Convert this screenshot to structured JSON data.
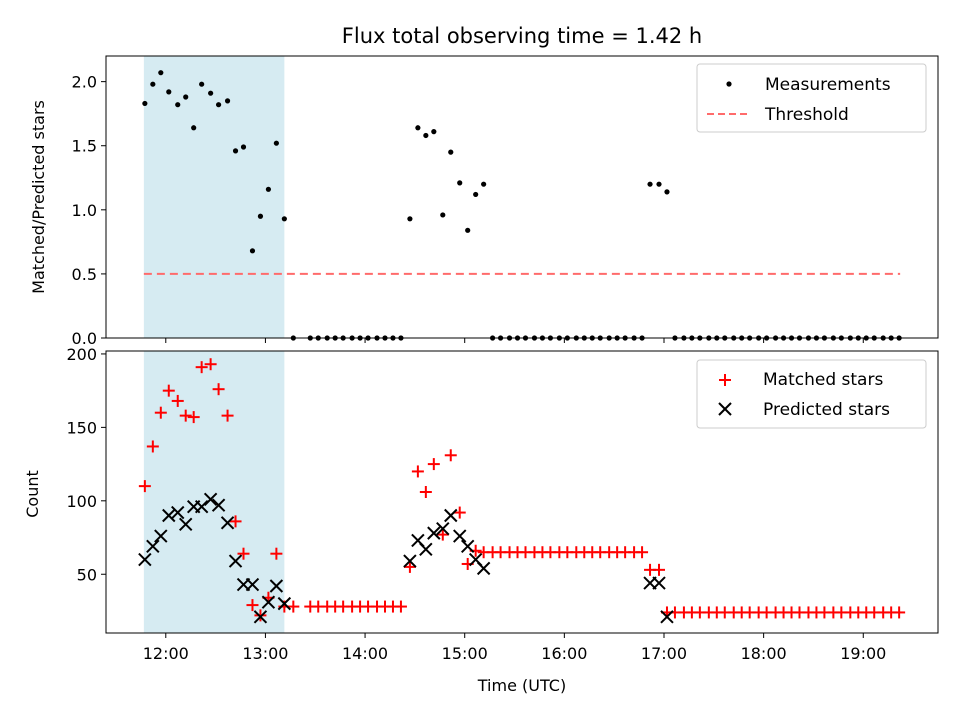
{
  "chart_data": [
    {
      "type": "scatter",
      "title": "Flux total observing time = 1.42 h",
      "ylabel": "Matched/Predicted stars",
      "xlabel": "",
      "xlim_hours": [
        11.4,
        19.75
      ],
      "ylim": [
        0,
        2.2
      ],
      "yticks": [
        0.0,
        0.5,
        1.0,
        1.5,
        2.0
      ],
      "ytick_labels": [
        "0.0",
        "0.5",
        "1.0",
        "1.5",
        "2.0"
      ],
      "shaded_interval_hours": [
        11.78,
        13.19
      ],
      "shade_color": "#add8e6",
      "threshold": {
        "value": 0.5,
        "from": 11.78,
        "to": 19.37,
        "color": "#ff6b6b"
      },
      "legend_position": "upper right",
      "legend": [
        {
          "label": "Measurements",
          "marker": "dot",
          "color": "#000000"
        },
        {
          "label": "Threshold",
          "marker": "dashed-line",
          "color": "#ff6b6b"
        }
      ],
      "series": [
        {
          "name": "Measurements",
          "x": [
            11.79,
            11.87,
            11.95,
            12.03,
            12.12,
            12.2,
            12.28,
            12.36,
            12.45,
            12.53,
            12.62,
            12.7,
            12.78,
            12.87,
            12.95,
            13.03,
            13.11,
            13.19,
            13.28,
            13.45,
            13.53,
            13.62,
            13.7,
            13.78,
            13.87,
            13.95,
            14.03,
            14.12,
            14.2,
            14.28,
            14.36,
            14.45,
            14.53,
            14.61,
            14.69,
            14.78,
            14.86,
            14.95,
            15.03,
            15.11,
            15.19,
            15.28,
            15.36,
            15.45,
            15.53,
            15.61,
            15.7,
            15.78,
            15.86,
            15.95,
            16.03,
            16.12,
            16.2,
            16.28,
            16.36,
            16.45,
            16.53,
            16.61,
            16.7,
            16.78,
            16.86,
            16.95,
            17.03,
            17.11,
            17.2,
            17.28,
            17.36,
            17.45,
            17.53,
            17.61,
            17.7,
            17.78,
            17.86,
            17.95,
            18.03,
            18.12,
            18.2,
            18.28,
            18.36,
            18.45,
            18.53,
            18.61,
            18.7,
            18.78,
            18.87,
            18.95,
            19.03,
            19.11,
            19.2,
            19.28,
            19.36
          ],
          "y": [
            1.83,
            1.98,
            2.07,
            1.92,
            1.82,
            1.88,
            1.64,
            1.98,
            1.91,
            1.82,
            1.85,
            1.46,
            1.49,
            0.68,
            0.95,
            1.16,
            1.52,
            0.93,
            0.0,
            0.0,
            0.0,
            0.0,
            0.0,
            0.0,
            0.0,
            0.0,
            0.0,
            0.0,
            0.0,
            0.0,
            0.0,
            0.93,
            1.64,
            1.58,
            1.61,
            0.96,
            1.45,
            1.21,
            0.84,
            1.12,
            1.2,
            0.0,
            0.0,
            0.0,
            0.0,
            0.0,
            0.0,
            0.0,
            0.0,
            0.0,
            0.0,
            0.0,
            0.0,
            0.0,
            0.0,
            0.0,
            0.0,
            0.0,
            0.0,
            0.0,
            1.2,
            1.2,
            1.14,
            0.0,
            0.0,
            0.0,
            0.0,
            0.0,
            0.0,
            0.0,
            0.0,
            0.0,
            0.0,
            0.0,
            0.0,
            0.0,
            0.0,
            0.0,
            0.0,
            0.0,
            0.0,
            0.0,
            0.0,
            0.0,
            0.0,
            0.0,
            0.0,
            0.0,
            0.0,
            0.0,
            0.0
          ]
        }
      ]
    },
    {
      "type": "scatter",
      "title": "",
      "ylabel": "Count",
      "xlabel": "Time (UTC)",
      "xlim_hours": [
        11.4,
        19.75
      ],
      "ylim": [
        10,
        202
      ],
      "yticks": [
        50,
        100,
        150,
        200
      ],
      "ytick_labels": [
        "50",
        "100",
        "150",
        "200"
      ],
      "xticks_hours": [
        12,
        13,
        14,
        15,
        16,
        17,
        18,
        19
      ],
      "xtick_labels": [
        "12:00",
        "13:00",
        "14:00",
        "15:00",
        "16:00",
        "17:00",
        "18:00",
        "19:00"
      ],
      "shaded_interval_hours": [
        11.78,
        13.19
      ],
      "shade_color": "#add8e6",
      "legend_position": "upper right",
      "legend": [
        {
          "label": "Matched stars",
          "marker": "plus",
          "color": "#ff0000"
        },
        {
          "label": "Predicted stars",
          "marker": "x",
          "color": "#000000"
        }
      ],
      "series": [
        {
          "name": "Matched stars",
          "x": [
            11.79,
            11.87,
            11.95,
            12.03,
            12.12,
            12.2,
            12.28,
            12.36,
            12.45,
            12.53,
            12.62,
            12.7,
            12.78,
            12.87,
            12.95,
            13.03,
            13.11,
            13.19,
            13.28,
            13.45,
            13.53,
            13.62,
            13.7,
            13.78,
            13.87,
            13.95,
            14.03,
            14.12,
            14.2,
            14.28,
            14.36,
            14.45,
            14.53,
            14.61,
            14.69,
            14.78,
            14.86,
            14.95,
            15.03,
            15.11,
            15.19,
            15.28,
            15.36,
            15.45,
            15.53,
            15.61,
            15.7,
            15.78,
            15.86,
            15.95,
            16.03,
            16.12,
            16.2,
            16.28,
            16.36,
            16.45,
            16.53,
            16.61,
            16.7,
            16.78,
            16.86,
            16.95,
            17.03,
            17.11,
            17.2,
            17.28,
            17.36,
            17.45,
            17.53,
            17.61,
            17.7,
            17.78,
            17.86,
            17.95,
            18.03,
            18.12,
            18.2,
            18.28,
            18.36,
            18.45,
            18.53,
            18.61,
            18.7,
            18.78,
            18.87,
            18.95,
            19.03,
            19.11,
            19.2,
            19.28,
            19.36
          ],
          "y": [
            110,
            137,
            160,
            175,
            168,
            158,
            157,
            191,
            193,
            176,
            158,
            86,
            64,
            29,
            22,
            34,
            64,
            28,
            28,
            28,
            28,
            28,
            28,
            28,
            28,
            28,
            28,
            28,
            28,
            28,
            28,
            55,
            120,
            106,
            125,
            77,
            131,
            92,
            57,
            66,
            65,
            65,
            65,
            65,
            65,
            65,
            65,
            65,
            65,
            65,
            65,
            65,
            65,
            65,
            65,
            65,
            65,
            65,
            65,
            65,
            53,
            53,
            24,
            24,
            24,
            24,
            24,
            24,
            24,
            24,
            24,
            24,
            24,
            24,
            24,
            24,
            24,
            24,
            24,
            24,
            24,
            24,
            24,
            24,
            24,
            24,
            24,
            24,
            24,
            24,
            24
          ]
        },
        {
          "name": "Predicted stars",
          "x": [
            11.79,
            11.87,
            11.95,
            12.03,
            12.12,
            12.2,
            12.28,
            12.36,
            12.45,
            12.53,
            12.62,
            12.7,
            12.78,
            12.87,
            12.95,
            13.03,
            13.11,
            13.19,
            14.45,
            14.53,
            14.61,
            14.69,
            14.78,
            14.86,
            14.95,
            15.03,
            15.11,
            15.19,
            16.86,
            16.95,
            17.03
          ],
          "y": [
            60,
            69,
            76,
            90,
            92,
            84,
            96,
            96,
            101,
            97,
            85,
            59,
            43,
            43,
            21,
            31,
            42,
            30,
            59,
            73,
            67,
            78,
            81,
            90,
            76,
            69,
            60,
            54,
            44,
            44,
            21
          ]
        }
      ]
    }
  ]
}
